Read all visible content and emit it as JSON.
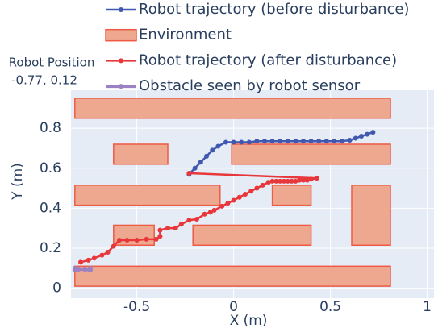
{
  "chart_data": {
    "type": "trajectory",
    "xlabel": "X (m)",
    "ylabel": "Y (m)",
    "xlim": [
      -0.84,
      1.035
    ],
    "ylim": [
      -0.05,
      0.99
    ],
    "xticks": [
      -0.5,
      0,
      0.5,
      1
    ],
    "yticks": [
      0,
      0.2,
      0.4,
      0.6,
      0.8
    ],
    "grid": true,
    "background": "#e5ecf6",
    "annotation": {
      "title": "Robot Position",
      "text": "-0.77, 0.12"
    },
    "series": [
      {
        "name": "Robot trajectory (before disturbance)",
        "kind": "line",
        "color": "#4158b0",
        "width": 2.5,
        "x": [
          -0.23,
          -0.2,
          -0.17,
          -0.14,
          -0.11,
          -0.08,
          -0.04,
          0.0,
          0.04,
          0.08,
          0.12,
          0.16,
          0.2,
          0.24,
          0.28,
          0.32,
          0.36,
          0.4,
          0.44,
          0.48,
          0.52,
          0.56,
          0.6,
          0.63,
          0.66,
          0.69,
          0.72
        ],
        "y": [
          0.57,
          0.6,
          0.63,
          0.66,
          0.69,
          0.71,
          0.73,
          0.73,
          0.73,
          0.73,
          0.735,
          0.735,
          0.735,
          0.735,
          0.735,
          0.735,
          0.735,
          0.735,
          0.735,
          0.735,
          0.735,
          0.735,
          0.74,
          0.75,
          0.76,
          0.77,
          0.78
        ]
      },
      {
        "name": "Environment",
        "kind": "rects",
        "color": "#eea88f",
        "line_color": "#ef5a45",
        "rects": [
          {
            "x0": -0.82,
            "x1": 0.81,
            "y0": 0.85,
            "y1": 0.95
          },
          {
            "x0": -0.62,
            "x1": -0.34,
            "y0": 0.62,
            "y1": 0.72
          },
          {
            "x0": -0.01,
            "x1": 0.81,
            "y0": 0.62,
            "y1": 0.72
          },
          {
            "x0": -0.82,
            "x1": -0.07,
            "y0": 0.415,
            "y1": 0.515
          },
          {
            "x0": 0.2,
            "x1": 0.4,
            "y0": 0.415,
            "y1": 0.515
          },
          {
            "x0": 0.61,
            "x1": 0.81,
            "y0": 0.215,
            "y1": 0.515
          },
          {
            "x0": -0.62,
            "x1": -0.41,
            "y0": 0.215,
            "y1": 0.315
          },
          {
            "x0": -0.21,
            "x1": 0.4,
            "y0": 0.215,
            "y1": 0.315
          },
          {
            "x0": -0.82,
            "x1": 0.81,
            "y0": 0.01,
            "y1": 0.11
          }
        ]
      },
      {
        "name": "Robot trajectory (after disturbance)",
        "kind": "line",
        "color": "#e8373a",
        "width": 2.5,
        "x": [
          -0.79,
          -0.75,
          -0.72,
          -0.68,
          -0.65,
          -0.62,
          -0.59,
          -0.55,
          -0.5,
          -0.45,
          -0.4,
          -0.38,
          -0.38,
          -0.34,
          -0.3,
          -0.27,
          -0.23,
          -0.19,
          -0.15,
          -0.12,
          -0.1,
          -0.06,
          -0.03,
          0.0,
          0.03,
          0.06,
          0.09,
          0.12,
          0.15,
          0.18,
          0.2,
          0.22,
          0.24,
          0.26,
          0.28,
          0.3,
          0.32,
          0.34,
          0.36,
          0.38,
          0.4,
          0.43,
          -0.23
        ],
        "y": [
          0.13,
          0.14,
          0.15,
          0.165,
          0.18,
          0.21,
          0.24,
          0.24,
          0.24,
          0.245,
          0.245,
          0.26,
          0.29,
          0.3,
          0.3,
          0.32,
          0.34,
          0.345,
          0.37,
          0.38,
          0.39,
          0.41,
          0.425,
          0.44,
          0.455,
          0.47,
          0.485,
          0.5,
          0.515,
          0.53,
          0.535,
          0.535,
          0.535,
          0.535,
          0.535,
          0.535,
          0.535,
          0.54,
          0.54,
          0.54,
          0.545,
          0.55,
          0.575
        ]
      },
      {
        "name": "Obstacle seen by robot sensor",
        "kind": "line",
        "color": "#9b80c4",
        "width": 4,
        "x": [
          -0.82,
          -0.82,
          -0.8,
          -0.77,
          -0.74,
          -0.74
        ],
        "y": [
          0.1,
          0.09,
          0.095,
          0.095,
          0.09,
          0.1
        ]
      }
    ]
  }
}
